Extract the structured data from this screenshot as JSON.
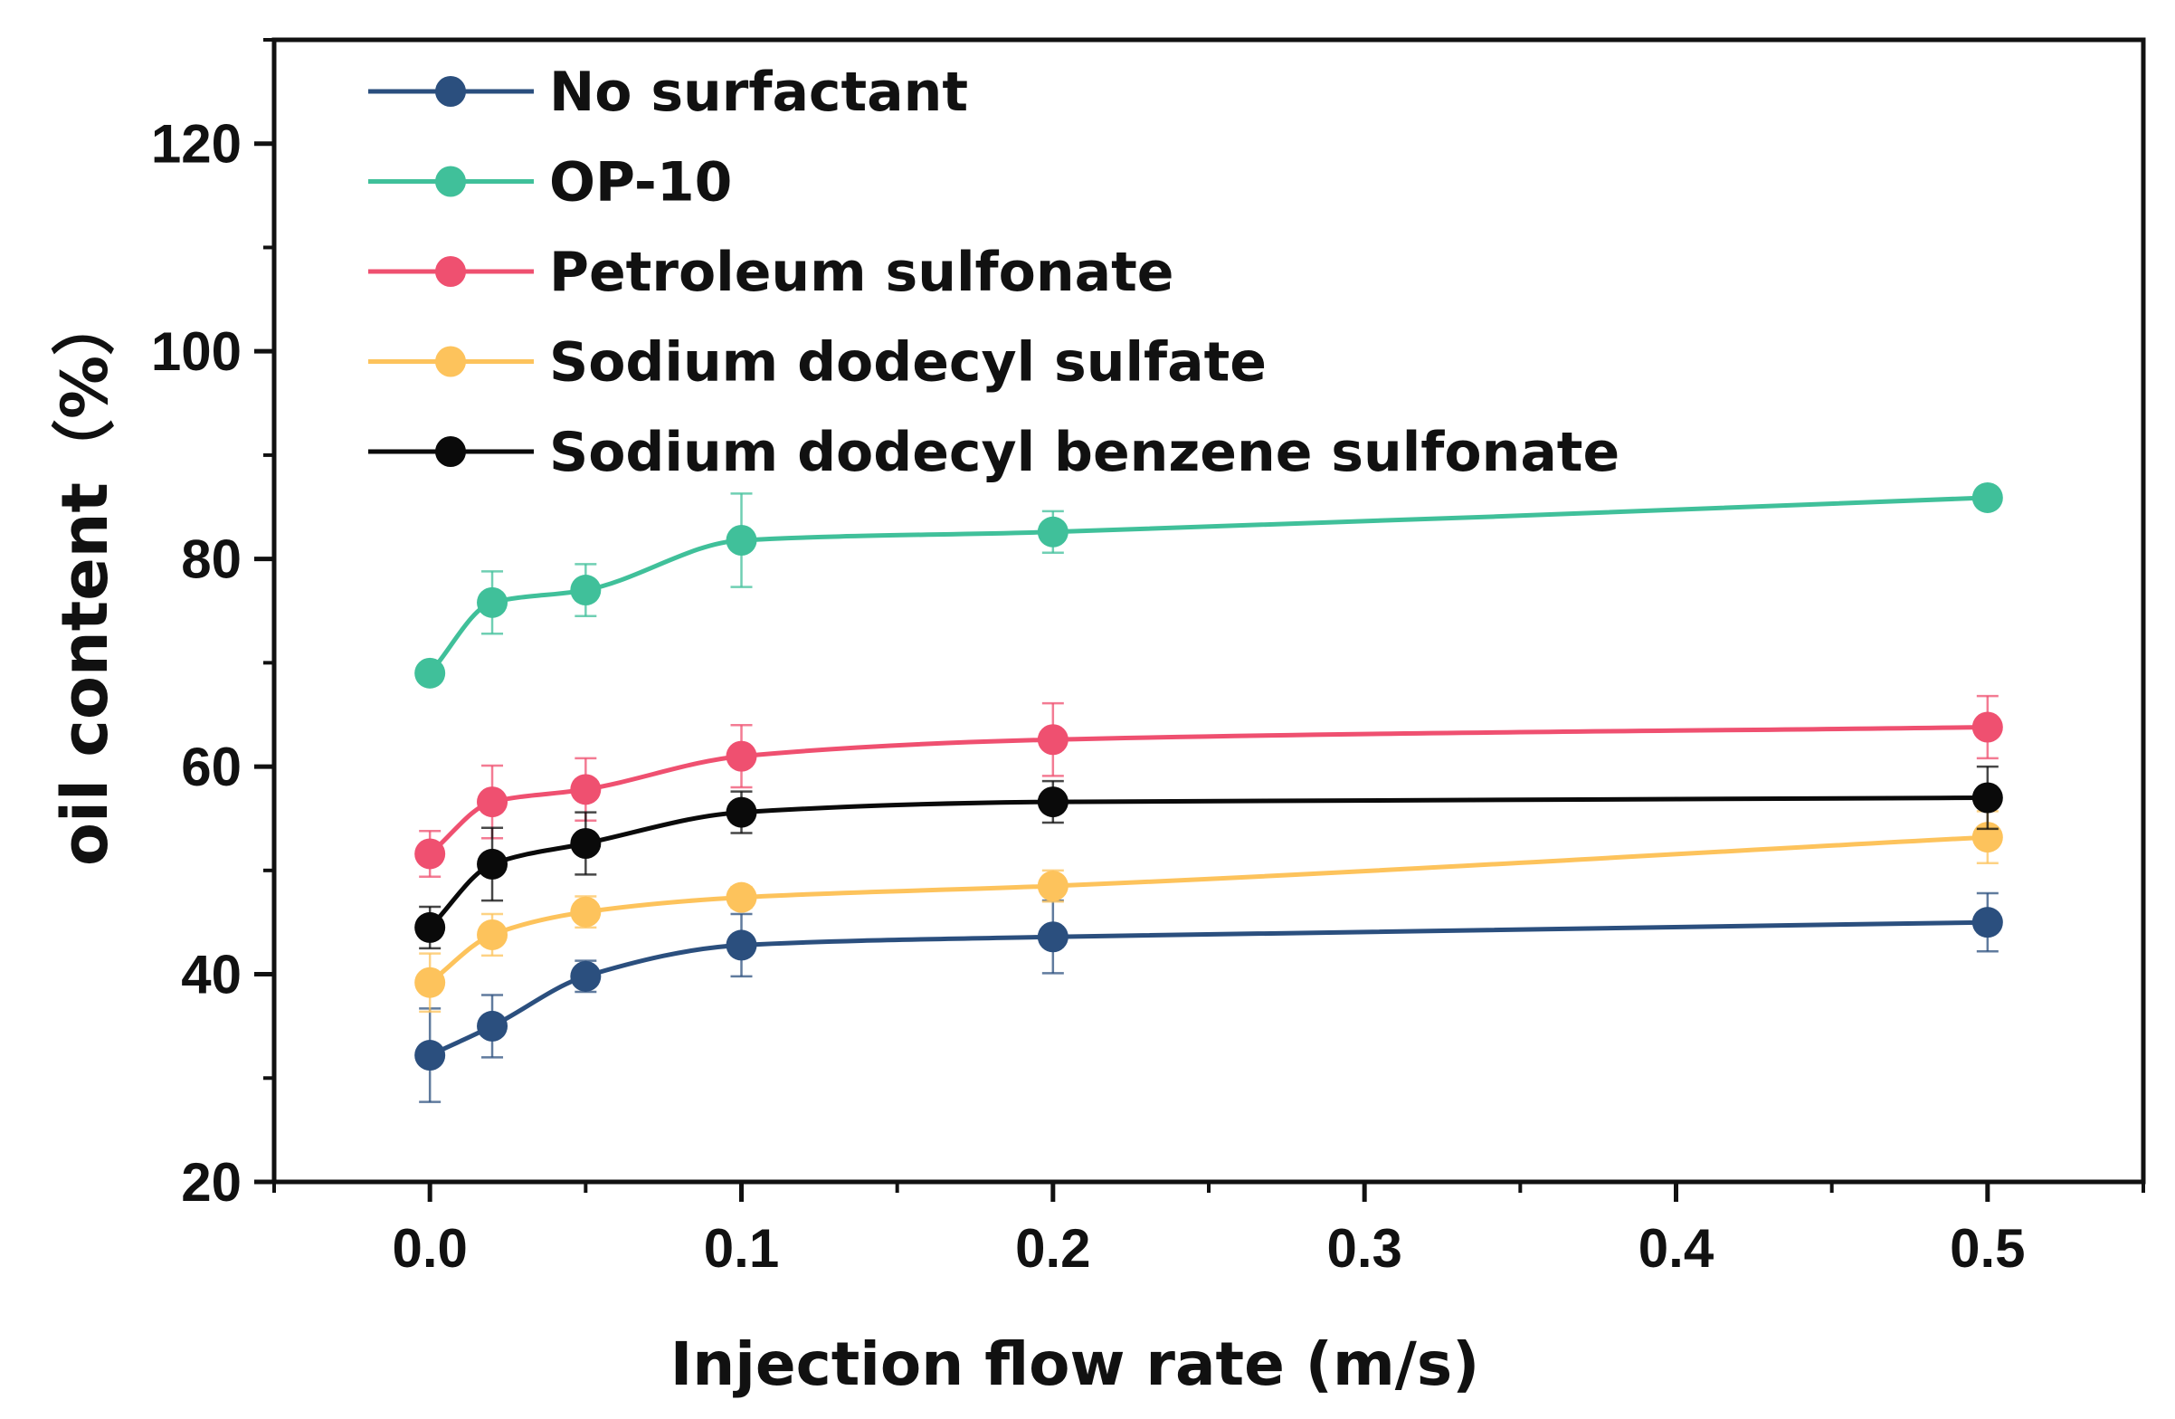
{
  "chart_data": {
    "type": "line",
    "title": "",
    "xlabel": "Injection flow rate (m/s)",
    "ylabel": "oil content（%）",
    "xlim": [
      -0.05,
      0.55
    ],
    "ylim": [
      20,
      130
    ],
    "x_ticks": [
      0.0,
      0.1,
      0.2,
      0.3,
      0.4,
      0.5
    ],
    "x_tick_labels": [
      "0.0",
      "0.1",
      "0.2",
      "0.3",
      "0.4",
      "0.5"
    ],
    "y_ticks": [
      20,
      40,
      60,
      80,
      100,
      120
    ],
    "y_tick_labels": [
      "20",
      "40",
      "60",
      "80",
      "100",
      "120"
    ],
    "legend_position": "top-left",
    "x": [
      0.0,
      0.02,
      0.05,
      0.1,
      0.2,
      0.5
    ],
    "series": [
      {
        "name": "No surfactant",
        "color": "#2b4f7e",
        "values": [
          32.2,
          35.0,
          39.8,
          42.8,
          43.6,
          45.0
        ],
        "errors": [
          4.5,
          3.0,
          1.5,
          3.0,
          3.5,
          2.8
        ]
      },
      {
        "name": "OP-10",
        "color": "#40c09a",
        "values": [
          69.0,
          75.8,
          77.0,
          81.8,
          82.6,
          85.9
        ],
        "errors": [
          0.5,
          3.0,
          2.5,
          4.5,
          2.0,
          0.5
        ]
      },
      {
        "name": "Petroleum sulfonate",
        "color": "#ef5070",
        "values": [
          51.6,
          56.6,
          57.8,
          61.0,
          62.6,
          63.8
        ],
        "errors": [
          2.2,
          3.5,
          3.0,
          3.0,
          3.5,
          3.0
        ]
      },
      {
        "name": "Sodium dodecyl sulfate",
        "color": "#fdc35c",
        "values": [
          39.2,
          43.8,
          46.0,
          47.4,
          48.5,
          53.2
        ],
        "errors": [
          2.8,
          2.0,
          1.5,
          1.0,
          1.5,
          2.5
        ]
      },
      {
        "name": "Sodium dodecyl benzene sulfonate",
        "color": "#0a0a0a",
        "values": [
          44.5,
          50.6,
          52.6,
          55.6,
          56.6,
          57.0
        ],
        "errors": [
          2.0,
          3.5,
          3.0,
          2.0,
          2.0,
          3.0
        ]
      }
    ]
  }
}
